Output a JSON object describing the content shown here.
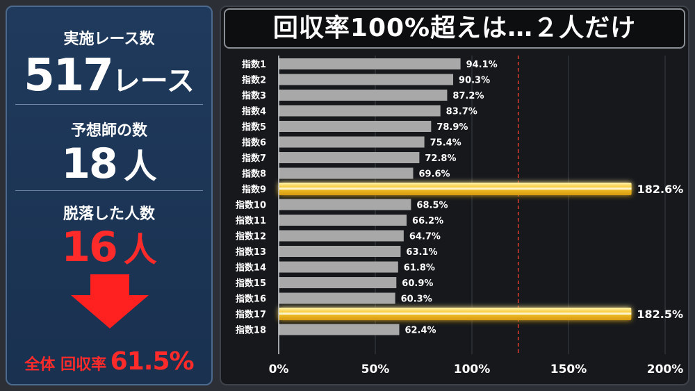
{
  "left_panel": {
    "races_label": "実施レース数",
    "races_value": "517",
    "races_unit": "レース",
    "tipsters_label": "予想師の数",
    "tipsters_value": "18",
    "tipsters_unit": "人",
    "dropout_label": "脱落した人数",
    "dropout_value": "16",
    "dropout_unit": "人",
    "summary_label": "全体 回収率",
    "summary_value": "61.5%"
  },
  "chart_data": {
    "type": "bar",
    "orientation": "horizontal",
    "title": "回収率100%超えは…２人だけ",
    "categories": [
      "指数1",
      "指数2",
      "指数3",
      "指数4",
      "指数5",
      "指数6",
      "指数7",
      "指数8",
      "指数9",
      "指数10",
      "指数11",
      "指数12",
      "指数13",
      "指数14",
      "指数15",
      "指数16",
      "指数17",
      "指数18"
    ],
    "values": [
      94.1,
      90.3,
      87.2,
      83.7,
      78.9,
      75.4,
      72.8,
      69.6,
      182.6,
      68.5,
      66.2,
      64.7,
      63.1,
      61.8,
      60.9,
      60.3,
      182.5,
      62.4
    ],
    "value_labels": [
      "94.1%",
      "90.3%",
      "87.2%",
      "83.7%",
      "78.9%",
      "75.4%",
      "72.8%",
      "69.6%",
      "182.6%",
      "68.5%",
      "66.2%",
      "64.7%",
      "63.1%",
      "61.8%",
      "60.9%",
      "60.3%",
      "182.5%",
      "62.4%"
    ],
    "highlighted": [
      "指数9",
      "指数17"
    ],
    "xlim": [
      0,
      200
    ],
    "xticks": [
      0,
      50,
      100,
      150,
      200
    ],
    "xtick_labels": [
      "0%",
      "50%",
      "100%",
      "150%",
      "200%"
    ],
    "reference_line": 124,
    "colors": {
      "bar": "#a8a8a8",
      "highlight": "#f5c431",
      "reference": "#d93a2e",
      "label": "#ffffff"
    }
  }
}
